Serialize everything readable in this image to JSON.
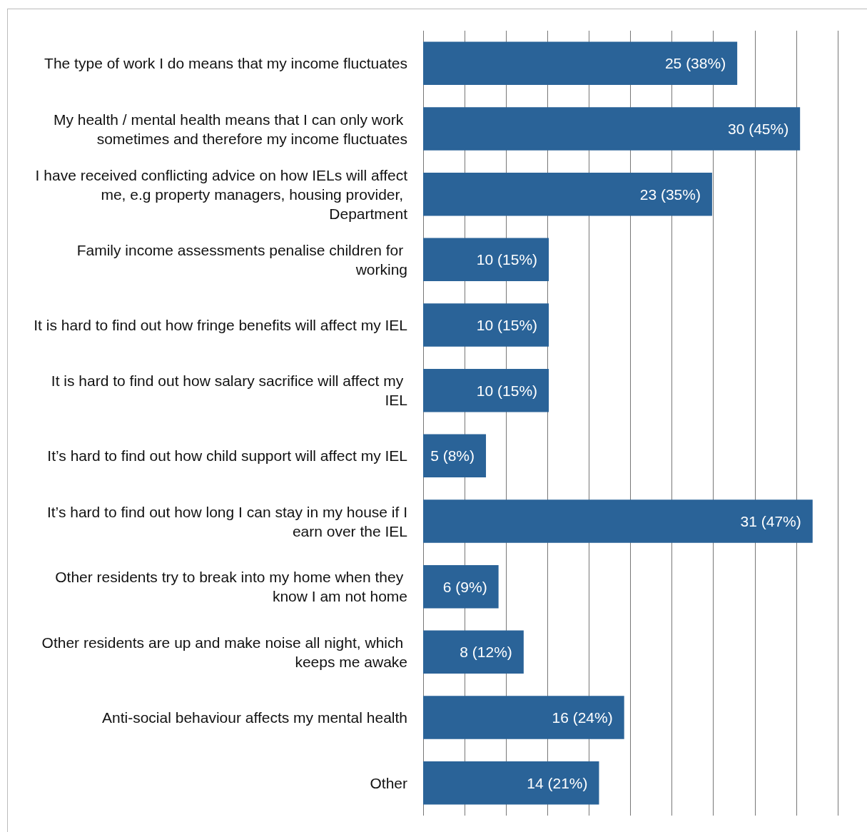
{
  "chart_data": {
    "type": "bar",
    "orientation": "horizontal",
    "categories": [
      "The type of work I do means that my income fluctuates",
      "My health / mental health means that I can only work sometimes and therefore my income fluctuates",
      "I have received conflicting advice on how IELs will affect me, e.g property managers, housing provider, Department",
      "Family income assessments penalise children for working",
      "It is hard to find out how fringe benefits will affect my IEL",
      "It is hard to find out how salary sacrifice will affect my IEL",
      "It’s hard to find out how child support will affect my IEL",
      "It’s hard to find out how long I can stay in my house if I earn over the IEL",
      "Other residents try to break into my home when they know I am not home",
      "Other residents are up and make noise all night, which keeps me awake",
      "Anti-social behaviour affects my mental health",
      "Other"
    ],
    "values": [
      25,
      30,
      23,
      10,
      10,
      10,
      5,
      31,
      6,
      8,
      16,
      14
    ],
    "value_labels": [
      "25 (38%)",
      "30 (45%)",
      "23 (35%)",
      "10 (15%)",
      "10 (15%)",
      "10 (15%)",
      "5 (8%)",
      "31 (47%)",
      "6 (9%)",
      "8 (12%)",
      "16 (24%)",
      "14 (21%)"
    ],
    "color": "#2a6398",
    "xlim": [
      0,
      33
    ],
    "xticks": [
      {
        "value": 0,
        "label": null
      },
      {
        "value": 3.3,
        "label": null
      },
      {
        "value": 6.6,
        "label": null
      },
      {
        "value": 9.9,
        "label": null
      },
      {
        "value": 13.2,
        "label": null
      },
      {
        "value": 16.5,
        "label": null
      },
      {
        "value": 19.8,
        "label": null
      },
      {
        "value": 23.1,
        "label": null
      },
      {
        "value": 26.4,
        "label": null
      },
      {
        "value": 29.7,
        "label": null
      },
      {
        "value": 33,
        "label": null
      }
    ],
    "grid": "x",
    "tick_labels": "y"
  }
}
